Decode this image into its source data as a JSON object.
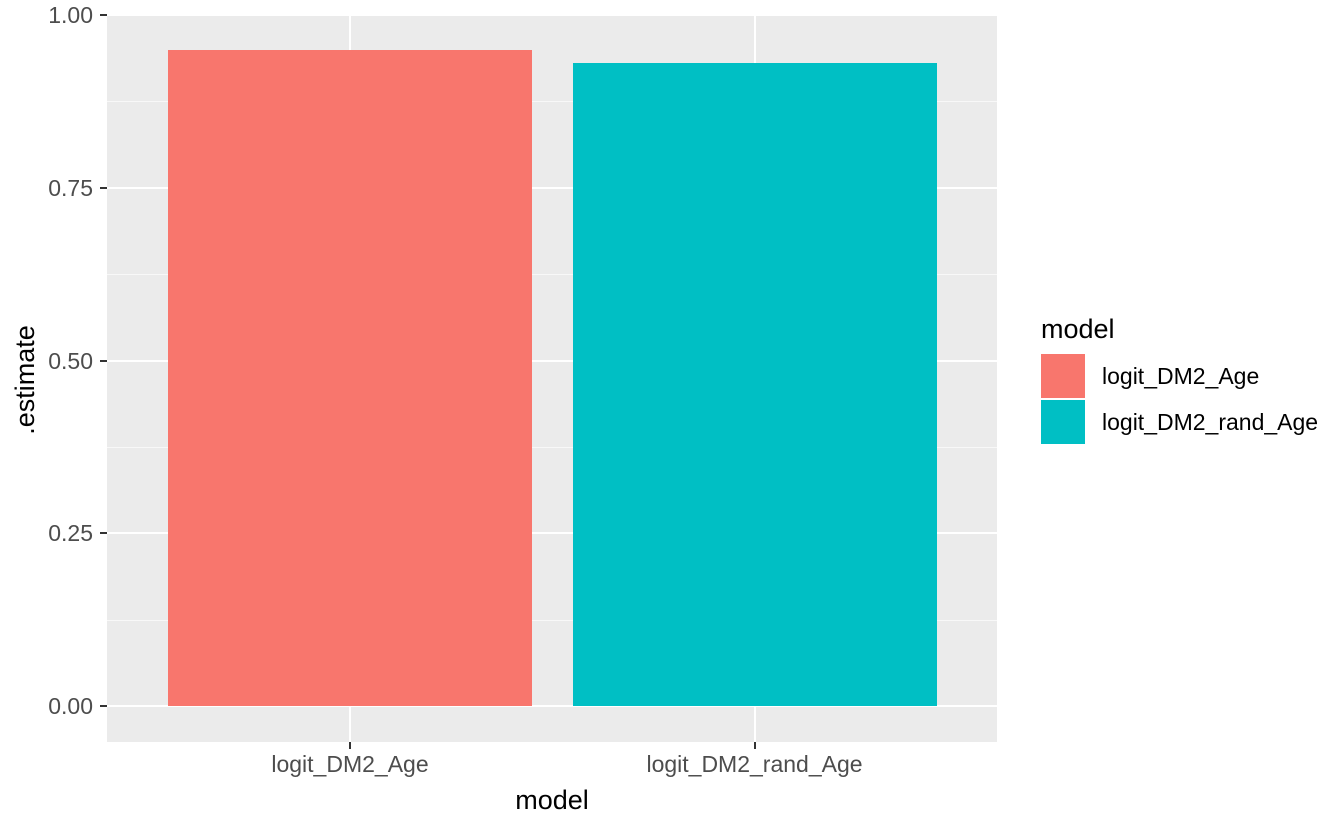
{
  "figure": {
    "background": "#FFFFFF",
    "panel_background": "#EBEBEB",
    "gridline_color": "#FFFFFF",
    "axis_text_color": "#4D4D4D",
    "title_text_color": "#000000",
    "tick_mark_color": "#333333"
  },
  "chart_data": {
    "type": "bar",
    "title": "",
    "xlabel": "model",
    "ylabel": ".estimate",
    "categories": [
      "logit_DM2_Age",
      "logit_DM2_rand_Age"
    ],
    "values": [
      0.95,
      0.93
    ],
    "bar_colors": [
      "#F8766D",
      "#00BFC4"
    ],
    "ylim": [
      0,
      1.0
    ],
    "y_ticks": [
      0,
      0.25,
      0.5,
      0.75,
      1.0
    ],
    "y_tick_labels": [
      "0.00",
      "0.25",
      "0.50",
      "0.75",
      "1.00"
    ],
    "y_minor_ticks": [
      0.125,
      0.375,
      0.625,
      0.875
    ],
    "grid": true,
    "legend_position": "right",
    "legend": {
      "title": "model",
      "items": [
        {
          "label": "logit_DM2_Age",
          "color": "#F8766D"
        },
        {
          "label": "logit_DM2_rand_Age",
          "color": "#00BFC4"
        }
      ]
    }
  }
}
